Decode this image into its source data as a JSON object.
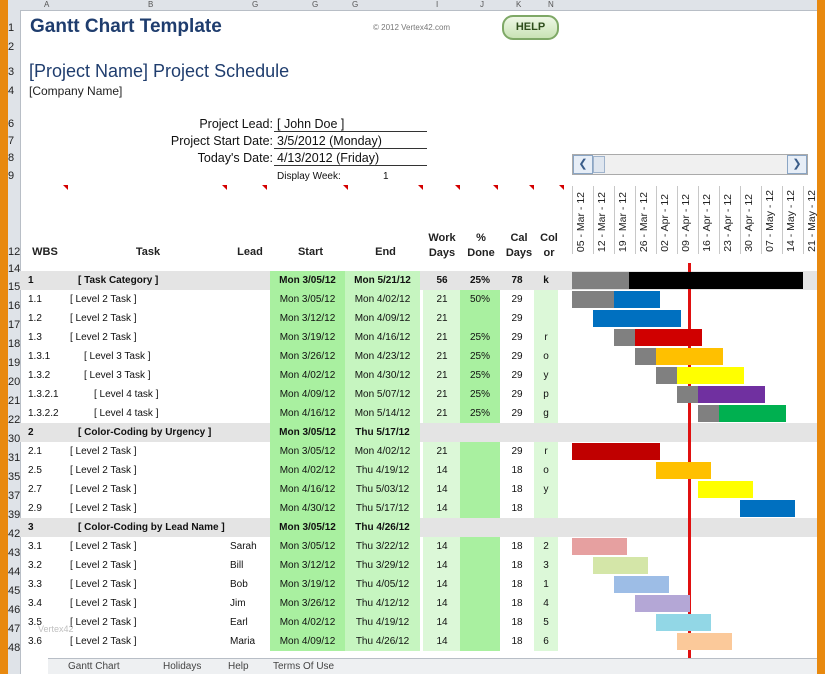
{
  "column_headers": [
    "A",
    "B",
    "G",
    "G",
    "G",
    "I",
    "J",
    "K",
    "N"
  ],
  "row_numbers": [
    "1",
    "2",
    "3",
    "4",
    "6",
    "7",
    "8",
    "9",
    "12",
    "14",
    "15",
    "16",
    "17",
    "18",
    "19",
    "20",
    "21",
    "22",
    "30",
    "31",
    "35",
    "37",
    "39",
    "42",
    "43",
    "44",
    "45",
    "46",
    "47",
    "48"
  ],
  "header": {
    "title": "Gantt Chart Template",
    "copyright": "© 2012 Vertex42.com",
    "help_label": "HELP"
  },
  "project": {
    "title": "[Project Name] Project Schedule",
    "company": "[Company Name]",
    "lead_label": "Project Lead:",
    "lead_value": "[ John Doe ]",
    "start_label": "Project Start Date:",
    "start_value": "3/5/2012 (Monday)",
    "today_label": "Today's Date:",
    "today_value": "4/13/2012 (Friday)",
    "display_week_label": "Display Week:",
    "display_week_value": "1"
  },
  "table_headers": {
    "wbs": "WBS",
    "task": "Task",
    "lead": "Lead",
    "start": "Start",
    "end": "End",
    "work_days_1": "Work",
    "work_days_2": "Days",
    "pct_1": "%",
    "pct_2": "Done",
    "cal_1": "Cal",
    "cal_2": "Days",
    "color_1": "Col",
    "color_2": "or"
  },
  "timeline": [
    "05 - Mar - 12",
    "12 - Mar - 12",
    "19 - Mar - 12",
    "26 - Mar - 12",
    "02 - Apr - 12",
    "09 - Apr - 12",
    "16 - Apr - 12",
    "23 - Apr - 12",
    "30 - Apr - 12",
    "07 - May - 12",
    "14 - May - 12",
    "21 - May - 12"
  ],
  "rows": [
    {
      "wbs": "1",
      "task": "[ Task Category ]",
      "lead": "",
      "start": "Mon 3/05/12",
      "end": "Mon 5/21/12",
      "work": "56",
      "pct": "25%",
      "cal": "78",
      "color": "k",
      "category": true
    },
    {
      "wbs": "1.1",
      "task": "[ Level 2 Task ]",
      "lead": "",
      "start": "Mon 3/05/12",
      "end": "Mon 4/02/12",
      "work": "21",
      "pct": "50%",
      "cal": "29",
      "color": ""
    },
    {
      "wbs": "1.2",
      "task": "[ Level 2 Task ]",
      "lead": "",
      "start": "Mon 3/12/12",
      "end": "Mon 4/09/12",
      "work": "21",
      "pct": "",
      "cal": "29",
      "color": ""
    },
    {
      "wbs": "1.3",
      "task": "[ Level 2 Task ]",
      "lead": "",
      "start": "Mon 3/19/12",
      "end": "Mon 4/16/12",
      "work": "21",
      "pct": "25%",
      "cal": "29",
      "color": "r"
    },
    {
      "wbs": "1.3.1",
      "task": "[ Level 3 Task ]",
      "lead": "",
      "start": "Mon 3/26/12",
      "end": "Mon 4/23/12",
      "work": "21",
      "pct": "25%",
      "cal": "29",
      "color": "o"
    },
    {
      "wbs": "1.3.2",
      "task": "[ Level 3 Task ]",
      "lead": "",
      "start": "Mon 4/02/12",
      "end": "Mon 4/30/12",
      "work": "21",
      "pct": "25%",
      "cal": "29",
      "color": "y"
    },
    {
      "wbs": "1.3.2.1",
      "task": "[ Level 4 task ]",
      "lead": "",
      "start": "Mon 4/09/12",
      "end": "Mon 5/07/12",
      "work": "21",
      "pct": "25%",
      "cal": "29",
      "color": "p"
    },
    {
      "wbs": "1.3.2.2",
      "task": "[ Level 4 task ]",
      "lead": "",
      "start": "Mon 4/16/12",
      "end": "Mon 5/14/12",
      "work": "21",
      "pct": "25%",
      "cal": "29",
      "color": "g"
    },
    {
      "wbs": "2",
      "task": "[ Color-Coding by Urgency ]",
      "lead": "",
      "start": "Mon 3/05/12",
      "end": "Thu 5/17/12",
      "work": "",
      "pct": "",
      "cal": "",
      "color": "",
      "category": true
    },
    {
      "wbs": "2.1",
      "task": "[ Level 2 Task ]",
      "lead": "",
      "start": "Mon 3/05/12",
      "end": "Mon 4/02/12",
      "work": "21",
      "pct": "",
      "cal": "29",
      "color": "r"
    },
    {
      "wbs": "2.5",
      "task": "[ Level 2 Task ]",
      "lead": "",
      "start": "Mon 4/02/12",
      "end": "Thu 4/19/12",
      "work": "14",
      "pct": "",
      "cal": "18",
      "color": "o"
    },
    {
      "wbs": "2.7",
      "task": "[ Level 2 Task ]",
      "lead": "",
      "start": "Mon 4/16/12",
      "end": "Thu 5/03/12",
      "work": "14",
      "pct": "",
      "cal": "18",
      "color": "y"
    },
    {
      "wbs": "2.9",
      "task": "[ Level 2 Task ]",
      "lead": "",
      "start": "Mon 4/30/12",
      "end": "Thu 5/17/12",
      "work": "14",
      "pct": "",
      "cal": "18",
      "color": ""
    },
    {
      "wbs": "3",
      "task": "[ Color-Coding by Lead Name ]",
      "lead": "",
      "start": "Mon 3/05/12",
      "end": "Thu 4/26/12",
      "work": "",
      "pct": "",
      "cal": "",
      "color": "",
      "category": true
    },
    {
      "wbs": "3.1",
      "task": "[ Level 2 Task ]",
      "lead": "Sarah",
      "start": "Mon 3/05/12",
      "end": "Thu 3/22/12",
      "work": "14",
      "pct": "",
      "cal": "18",
      "color": "2"
    },
    {
      "wbs": "3.2",
      "task": "[ Level 2 Task ]",
      "lead": "Bill",
      "start": "Mon 3/12/12",
      "end": "Thu 3/29/12",
      "work": "14",
      "pct": "",
      "cal": "18",
      "color": "3"
    },
    {
      "wbs": "3.3",
      "task": "[ Level 2 Task ]",
      "lead": "Bob",
      "start": "Mon 3/19/12",
      "end": "Thu 4/05/12",
      "work": "14",
      "pct": "",
      "cal": "18",
      "color": "1"
    },
    {
      "wbs": "3.4",
      "task": "[ Level 2 Task ]",
      "lead": "Jim",
      "start": "Mon 3/26/12",
      "end": "Thu 4/12/12",
      "work": "14",
      "pct": "",
      "cal": "18",
      "color": "4"
    },
    {
      "wbs": "3.5",
      "task": "[ Level 2 Task ]",
      "lead": "Earl",
      "start": "Mon 4/02/12",
      "end": "Thu 4/19/12",
      "work": "14",
      "pct": "",
      "cal": "18",
      "color": "5"
    },
    {
      "wbs": "3.6",
      "task": "[ Level 2 Task ]",
      "lead": "Maria",
      "start": "Mon 4/09/12",
      "end": "Thu 4/26/12",
      "work": "14",
      "pct": "",
      "cal": "18",
      "color": "6"
    }
  ],
  "bars": [
    {
      "done_color": "#808080",
      "color": "#000000",
      "start_week": 0,
      "done_weeks": 2.7,
      "weeks": 11
    },
    {
      "done_color": "#808080",
      "color": "#0070c0",
      "start_week": 0,
      "done_weeks": 2,
      "weeks": 4.2
    },
    {
      "done_color": "",
      "color": "#0070c0",
      "start_week": 1,
      "done_weeks": 0,
      "weeks": 4.2
    },
    {
      "done_color": "#808080",
      "color": "#d00000",
      "start_week": 2,
      "done_weeks": 1,
      "weeks": 4.2
    },
    {
      "done_color": "#808080",
      "color": "#ffc000",
      "start_week": 3,
      "done_weeks": 1,
      "weeks": 4.2
    },
    {
      "done_color": "#808080",
      "color": "#ffff00",
      "start_week": 4,
      "done_weeks": 1,
      "weeks": 4.2
    },
    {
      "done_color": "#808080",
      "color": "#7030a0",
      "start_week": 5,
      "done_weeks": 1,
      "weeks": 4.2
    },
    {
      "done_color": "#808080",
      "color": "#00b050",
      "start_week": 6,
      "done_weeks": 1,
      "weeks": 4.2
    },
    {
      "done_color": "",
      "color": "",
      "start_week": 0,
      "done_weeks": 0,
      "weeks": 0
    },
    {
      "done_color": "",
      "color": "#c00000",
      "start_week": 0,
      "done_weeks": 0,
      "weeks": 4.2
    },
    {
      "done_color": "",
      "color": "#ffc000",
      "start_week": 4,
      "done_weeks": 0,
      "weeks": 2.6
    },
    {
      "done_color": "",
      "color": "#ffff00",
      "start_week": 6,
      "done_weeks": 0,
      "weeks": 2.6
    },
    {
      "done_color": "",
      "color": "#0070c0",
      "start_week": 8,
      "done_weeks": 0,
      "weeks": 2.6
    },
    {
      "done_color": "",
      "color": "",
      "start_week": 0,
      "done_weeks": 0,
      "weeks": 0
    },
    {
      "done_color": "",
      "color": "#e6a0a0",
      "start_week": 0,
      "done_weeks": 0,
      "weeks": 2.6
    },
    {
      "done_color": "",
      "color": "#d4e6a8",
      "start_week": 1,
      "done_weeks": 0,
      "weeks": 2.6
    },
    {
      "done_color": "",
      "color": "#9dbde6",
      "start_week": 2,
      "done_weeks": 0,
      "weeks": 2.6
    },
    {
      "done_color": "",
      "color": "#b4a7d6",
      "start_week": 3,
      "done_weeks": 0,
      "weeks": 2.6
    },
    {
      "done_color": "",
      "color": "#92d7e6",
      "start_week": 4,
      "done_weeks": 0,
      "weeks": 2.6
    },
    {
      "done_color": "",
      "color": "#fbc99a",
      "start_week": 5,
      "done_weeks": 0,
      "weeks": 2.6
    }
  ],
  "watermark": "Vertex42",
  "sheet_tabs": [
    "Gantt Chart",
    "Holidays",
    "Help",
    "Terms Of Use"
  ]
}
